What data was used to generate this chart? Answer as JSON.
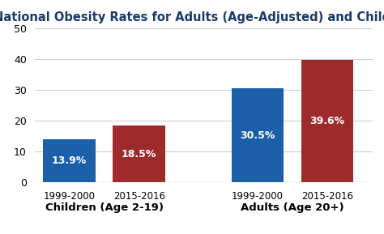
{
  "title": "National Obesity Rates for Adults (Age-Adjusted) and Children",
  "groups": [
    {
      "label": "Children (Age 2-19)",
      "bars": [
        {
          "year": "1999-2000",
          "value": 13.9,
          "color": "#1a5fa8"
        },
        {
          "year": "2015-2016",
          "value": 18.5,
          "color": "#9e2a2b"
        }
      ]
    },
    {
      "label": "Adults (Age 20+)",
      "bars": [
        {
          "year": "1999-2000",
          "value": 30.5,
          "color": "#1a5fa8"
        },
        {
          "year": "2015-2016",
          "value": 39.6,
          "color": "#9e2a2b"
        }
      ]
    }
  ],
  "ylim": [
    0,
    50
  ],
  "yticks": [
    0,
    10,
    20,
    30,
    40,
    50
  ],
  "title_fontsize": 10.5,
  "tick_fontsize": 9,
  "year_fontsize": 8.5,
  "group_label_fontsize": 9.5,
  "value_fontsize": 9,
  "background_color": "#ffffff",
  "grid_color": "#d0d0d0",
  "text_color": "white",
  "title_color": "#1a3a6b",
  "bar_width": 0.75,
  "positions": [
    0.5,
    1.5,
    3.2,
    4.2
  ]
}
